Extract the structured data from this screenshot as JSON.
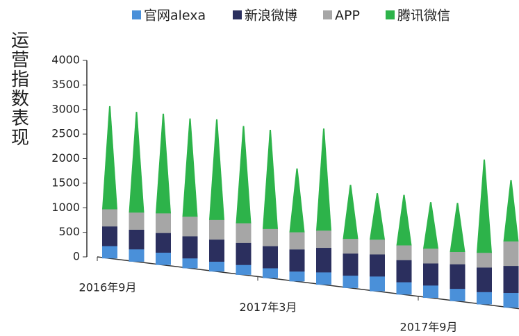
{
  "chart_data": {
    "type": "bar",
    "stacked": true,
    "ylabel": "运营指数表现",
    "categories": [
      "2016年9月",
      null,
      null,
      null,
      null,
      null,
      "2017年3月",
      null,
      null,
      null,
      null,
      null,
      "2017年9月",
      null,
      null,
      null
    ],
    "series": [
      {
        "name": "官网alexa",
        "color": "#4a90d9",
        "values": [
          250,
          250,
          250,
          200,
          200,
          200,
          200,
          200,
          250,
          250,
          300,
          250,
          250,
          250,
          250,
          300
        ]
      },
      {
        "name": "新浪微博",
        "color": "#2b2f5e",
        "values": [
          400,
          400,
          400,
          450,
          450,
          450,
          450,
          450,
          500,
          450,
          450,
          450,
          450,
          500,
          500,
          550
        ]
      },
      {
        "name": "APP",
        "color": "#a6a6a6",
        "values": [
          350,
          350,
          400,
          400,
          400,
          400,
          350,
          350,
          350,
          300,
          300,
          300,
          300,
          250,
          300,
          500
        ]
      },
      {
        "name": "腾讯微信",
        "color": "#2db34a",
        "values": [
          2100,
          2050,
          2030,
          2000,
          2050,
          1980,
          2020,
          1300,
          2080,
          1100,
          950,
          1030,
          950,
          1000,
          1900,
          1250
        ]
      }
    ],
    "ylim": [
      0,
      4000
    ],
    "yticks": [
      0,
      500,
      1000,
      1500,
      2000,
      2500,
      3000,
      3500,
      4000
    ],
    "legend": "top"
  }
}
